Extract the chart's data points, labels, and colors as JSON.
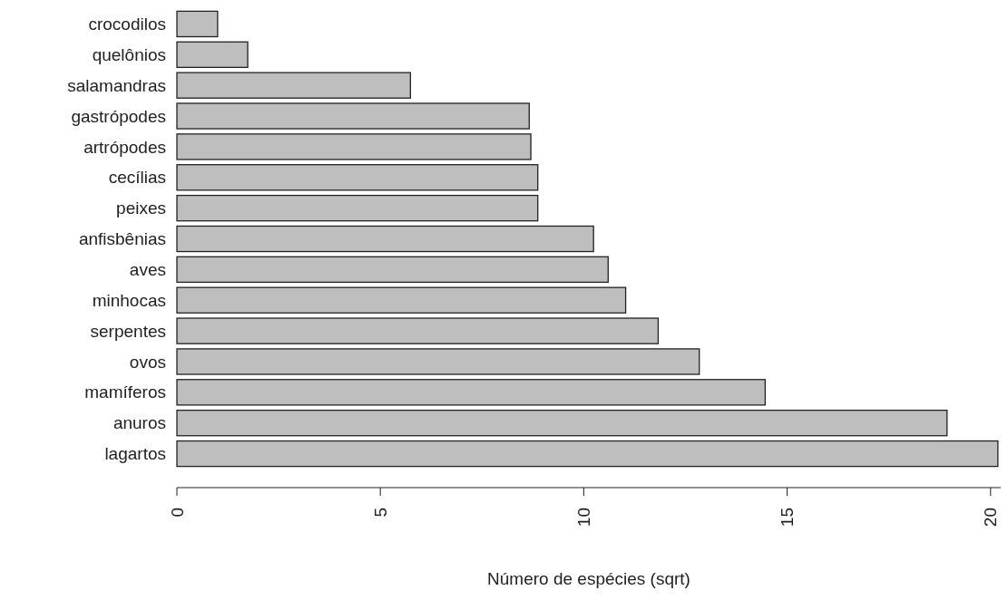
{
  "chart_data": {
    "type": "bar",
    "orientation": "horizontal",
    "xlabel": "Número de espécies (sqrt)",
    "categories": [
      "crocodilos",
      "quelônios",
      "salamandras",
      "gastrópodes",
      "artrópodes",
      "cecílias",
      "peixes",
      "anfisbênias",
      "aves",
      "minhocas",
      "serpentes",
      "ovos",
      "mamíferos",
      "anuros",
      "lagartos"
    ],
    "values": [
      1.0,
      1.74,
      5.74,
      8.66,
      8.7,
      8.87,
      8.87,
      10.24,
      10.6,
      11.03,
      11.83,
      12.84,
      14.46,
      18.93,
      20.18
    ],
    "color": "#bebebe",
    "xlim": [
      0,
      20.25
    ],
    "xticks": [
      0,
      5,
      10,
      15,
      20
    ],
    "grid": false
  }
}
